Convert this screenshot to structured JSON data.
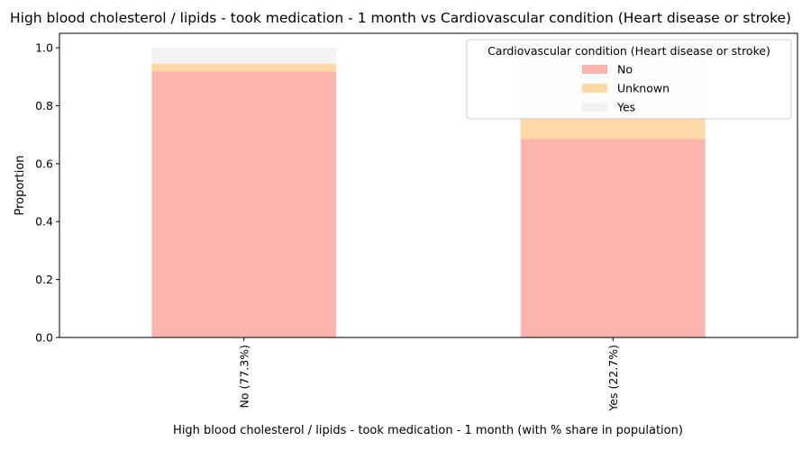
{
  "chart_data": {
    "type": "bar",
    "stacked": true,
    "title": "High blood cholesterol / lipids - took medication - 1 month vs Cardiovascular condition (Heart disease or stroke)",
    "xlabel": "High blood cholesterol / lipids - took medication - 1 month (with % share in population)",
    "ylabel": "Proportion",
    "categories": [
      "No (77.3%)",
      "Yes (22.7%)"
    ],
    "series": [
      {
        "name": "No",
        "color": "#fbb4ae",
        "values": [
          0.918,
          0.685
        ]
      },
      {
        "name": "Unknown",
        "color": "#fed9a6",
        "values": [
          0.027,
          0.072
        ]
      },
      {
        "name": "Yes",
        "color": "#f2f2f2",
        "values": [
          0.055,
          0.243
        ]
      }
    ],
    "ylim": [
      0,
      1.05
    ],
    "yticks": [
      0.0,
      0.2,
      0.4,
      0.6,
      0.8,
      1.0
    ],
    "grid": false,
    "legend": {
      "title": "Cardiovascular condition (Heart disease or stroke)",
      "placement": "top-right"
    }
  }
}
